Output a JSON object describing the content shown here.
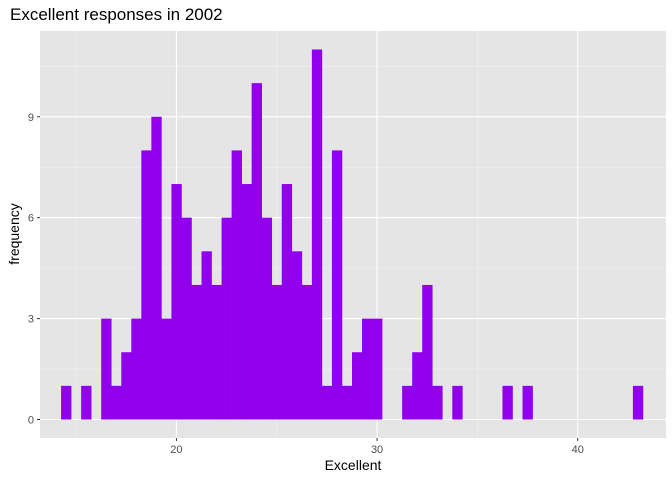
{
  "chart_data": {
    "type": "bar",
    "subtype": "histogram",
    "title": "Excellent responses in 2002",
    "xlabel": "Excellent",
    "ylabel": "frequency",
    "xlim": [
      13.2,
      44.4
    ],
    "ylim": [
      -0.55,
      11.55
    ],
    "x_ticks": [
      20,
      30,
      40
    ],
    "y_ticks": [
      0,
      3,
      6,
      9
    ],
    "x_tick_labels": [
      "20",
      "30",
      "40"
    ],
    "y_tick_labels": [
      "0",
      "3",
      "6",
      "9"
    ],
    "bin_start": 14.25,
    "bin_width": 0.5,
    "values": [
      1,
      0,
      1,
      0,
      3,
      1,
      2,
      3,
      8,
      9,
      3,
      7,
      6,
      4,
      5,
      4,
      6,
      8,
      7,
      10,
      6,
      4,
      7,
      5,
      4,
      11,
      1,
      8,
      1,
      2,
      3,
      3,
      0,
      0,
      1,
      2,
      4,
      1,
      0,
      1,
      0,
      0,
      0,
      0,
      1,
      0,
      1,
      0,
      0,
      0,
      0,
      0,
      0,
      0,
      0,
      0,
      0,
      1
    ],
    "bar_color": "#9000EE",
    "panel_color": "#E5E5E5",
    "grid": true
  }
}
